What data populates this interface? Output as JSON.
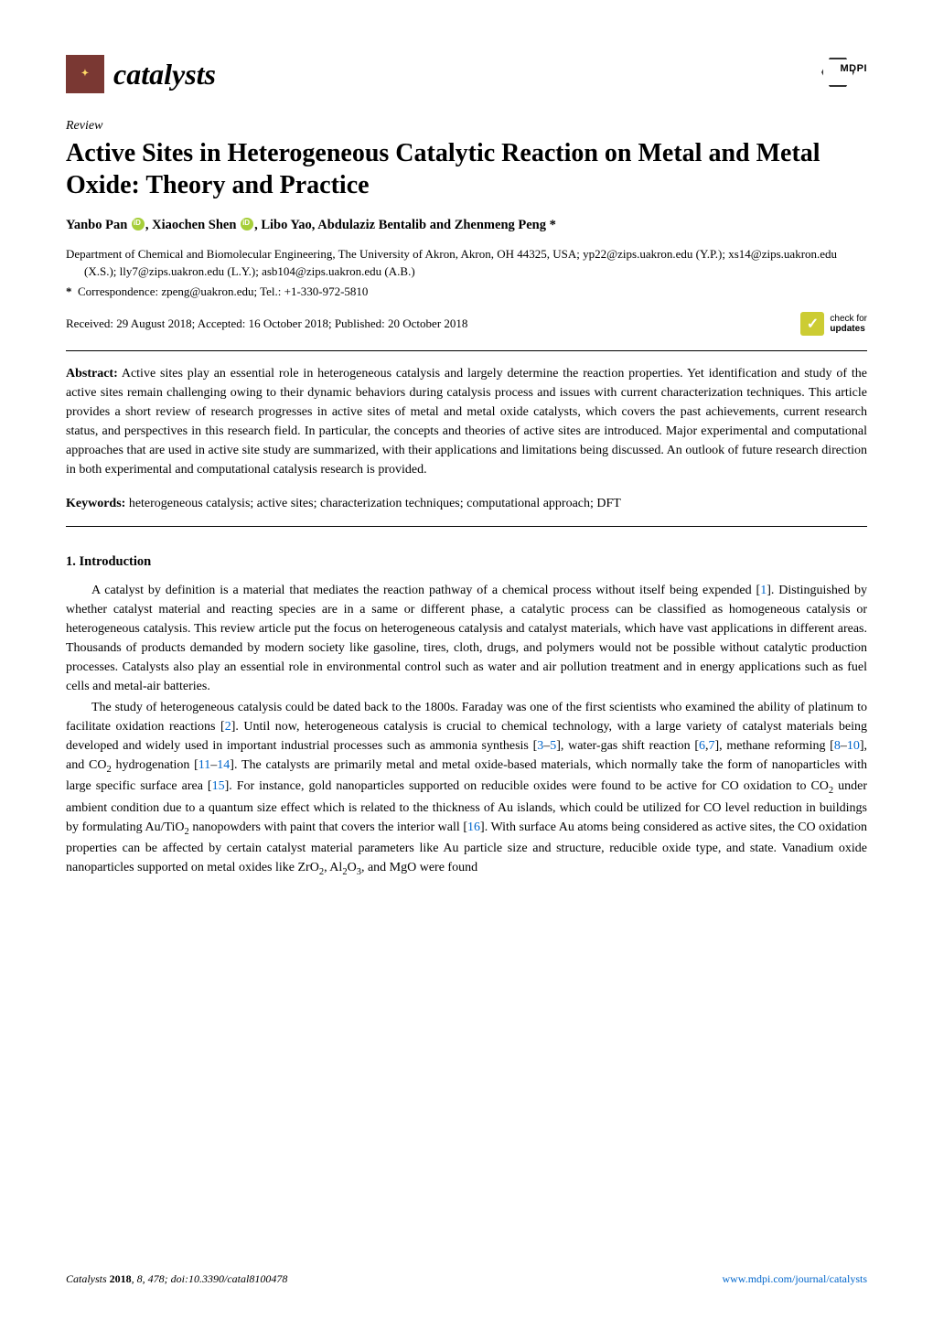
{
  "header": {
    "journal_name": "catalysts",
    "journal_logo_text": "✦",
    "publisher": "MDPI"
  },
  "article": {
    "type": "Review",
    "title": "Active Sites in Heterogeneous Catalytic Reaction on Metal and Metal Oxide: Theory and Practice",
    "authors_prefix": "Yanbo Pan",
    "authors_mid1": ", Xiaochen Shen",
    "authors_mid2": ", Libo Yao, Abdulaziz Bentalib and Zhenmeng Peng *",
    "affiliation": "Department of Chemical and Biomolecular Engineering, The University of Akron, Akron, OH 44325, USA; yp22@zips.uakron.edu (Y.P.); xs14@zips.uakron.edu (X.S.); lly7@zips.uakron.edu (L.Y.); asb104@zips.uakron.edu (A.B.)",
    "correspondence_label": "*",
    "correspondence": "Correspondence: zpeng@uakron.edu; Tel.: +1-330-972-5810",
    "dates": "Received: 29 August 2018; Accepted: 16 October 2018; Published: 20 October 2018",
    "check_updates_line1": "check for",
    "check_updates_line2": "updates"
  },
  "abstract": {
    "label": "Abstract:",
    "text": "Active sites play an essential role in heterogeneous catalysis and largely determine the reaction properties. Yet identification and study of the active sites remain challenging owing to their dynamic behaviors during catalysis process and issues with current characterization techniques. This article provides a short review of research progresses in active sites of metal and metal oxide catalysts, which covers the past achievements, current research status, and perspectives in this research field. In particular, the concepts and theories of active sites are introduced. Major experimental and computational approaches that are used in active site study are summarized, with their applications and limitations being discussed. An outlook of future research direction in both experimental and computational catalysis research is provided."
  },
  "keywords": {
    "label": "Keywords:",
    "text": "heterogeneous catalysis; active sites; characterization techniques; computational approach; DFT"
  },
  "section1": {
    "heading": "1. Introduction",
    "para1_a": "A catalyst by definition is a material that mediates the reaction pathway of a chemical process without itself being expended [",
    "cite1": "1",
    "para1_b": "]. Distinguished by whether catalyst material and reacting species are in a same or different phase, a catalytic process can be classified as homogeneous catalysis or heterogeneous catalysis. This review article put the focus on heterogeneous catalysis and catalyst materials, which have vast applications in different areas. Thousands of products demanded by modern society like gasoline, tires, cloth, drugs, and polymers would not be possible without catalytic production processes. Catalysts also play an essential role in environmental control such as water and air pollution treatment and in energy applications such as fuel cells and metal-air batteries.",
    "para2_a": "The study of heterogeneous catalysis could be dated back to the 1800s. Faraday was one of the first scientists who examined the ability of platinum to facilitate oxidation reactions [",
    "cite2": "2",
    "para2_b": "]. Until now, heterogeneous catalysis is crucial to chemical technology, with a large variety of catalyst materials being developed and widely used in important industrial processes such as ammonia synthesis [",
    "cite3": "3",
    "dash1": "–",
    "cite5": "5",
    "para2_c": "], water-gas shift reaction [",
    "cite6": "6",
    "comma1": ",",
    "cite7": "7",
    "para2_d": "], methane reforming [",
    "cite8": "8",
    "dash2": "–",
    "cite10": "10",
    "para2_e": "], and CO",
    "sub2a": "2",
    "para2_f": " hydrogenation [",
    "cite11": "11",
    "dash3": "–",
    "cite14": "14",
    "para2_g": "]. The catalysts are primarily metal and metal oxide-based materials, which normally take the form of nanoparticles with large specific surface area [",
    "cite15": "15",
    "para2_h": "]. For instance, gold nanoparticles supported on reducible oxides were found to be active for CO oxidation to CO",
    "sub2b": "2",
    "para2_i": " under ambient condition due to a quantum size effect which is related to the thickness of Au islands, which could be utilized for CO level reduction in buildings by formulating Au/TiO",
    "sub2c": "2",
    "para2_j": " nanopowders with paint that covers the interior wall [",
    "cite16": "16",
    "para2_k": "]. With surface Au atoms being considered as active sites, the CO oxidation properties can be affected by certain catalyst material parameters like Au particle size and structure, reducible oxide type, and state. Vanadium oxide nanoparticles supported on metal oxides like ZrO",
    "sub2d": "2",
    "para2_l": ", Al",
    "sub2e": "2",
    "para2_m": "O",
    "sub3": "3",
    "para2_n": ", and MgO were found"
  },
  "footer": {
    "left_italic": "Catalysts",
    "left_year": "2018",
    "left_rest": ", 8, 478; doi:10.3390/catal8100478",
    "right": "www.mdpi.com/journal/catalysts"
  },
  "colors": {
    "link": "#0066cc",
    "orcid": "#a6ce39",
    "logo_bg": "#7a3833",
    "check_bg": "#cccc33"
  }
}
